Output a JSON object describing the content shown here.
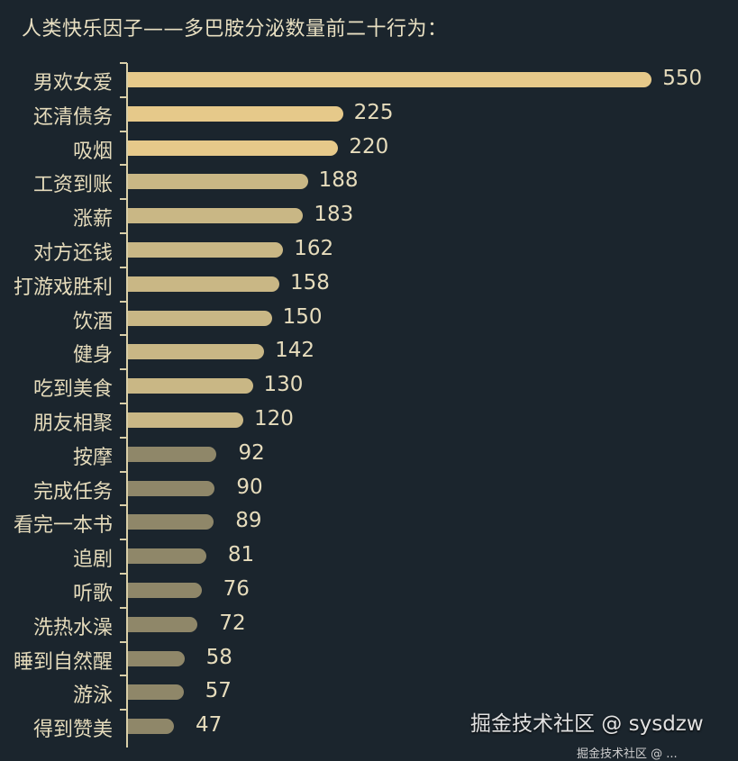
{
  "title": "人类快乐因子——多巴胺分泌数量前二十行为：",
  "watermark": "掘金技术社区 @ sysdzw",
  "watermark_small": "掘金技术社区 @ ...",
  "colors": {
    "background": "#1b252d",
    "bar_bright": "#e6c98a",
    "bar_mid": "#c9b785",
    "bar_dim": "#8f8769",
    "text": "#e6dcbc"
  },
  "chart_data": {
    "type": "bar",
    "orientation": "horizontal",
    "title": "人类快乐因子——多巴胺分泌数量前二十行为：",
    "xlabel": "",
    "ylabel": "",
    "grid": false,
    "categories": [
      "男欢女爱",
      "还清债务",
      "吸烟",
      "工资到账",
      "涨薪",
      "对方还钱",
      "打游戏胜利",
      "饮酒",
      "健身",
      "吃到美食",
      "朋友相聚",
      "按摩",
      "完成任务",
      "看完一本书",
      "追剧",
      "听歌",
      "洗热水澡",
      "睡到自然醒",
      "游泳",
      "得到赞美"
    ],
    "values": [
      550,
      225,
      220,
      188,
      183,
      162,
      158,
      150,
      142,
      130,
      120,
      92,
      90,
      89,
      81,
      76,
      72,
      58,
      57,
      47
    ],
    "data_labels": true
  }
}
